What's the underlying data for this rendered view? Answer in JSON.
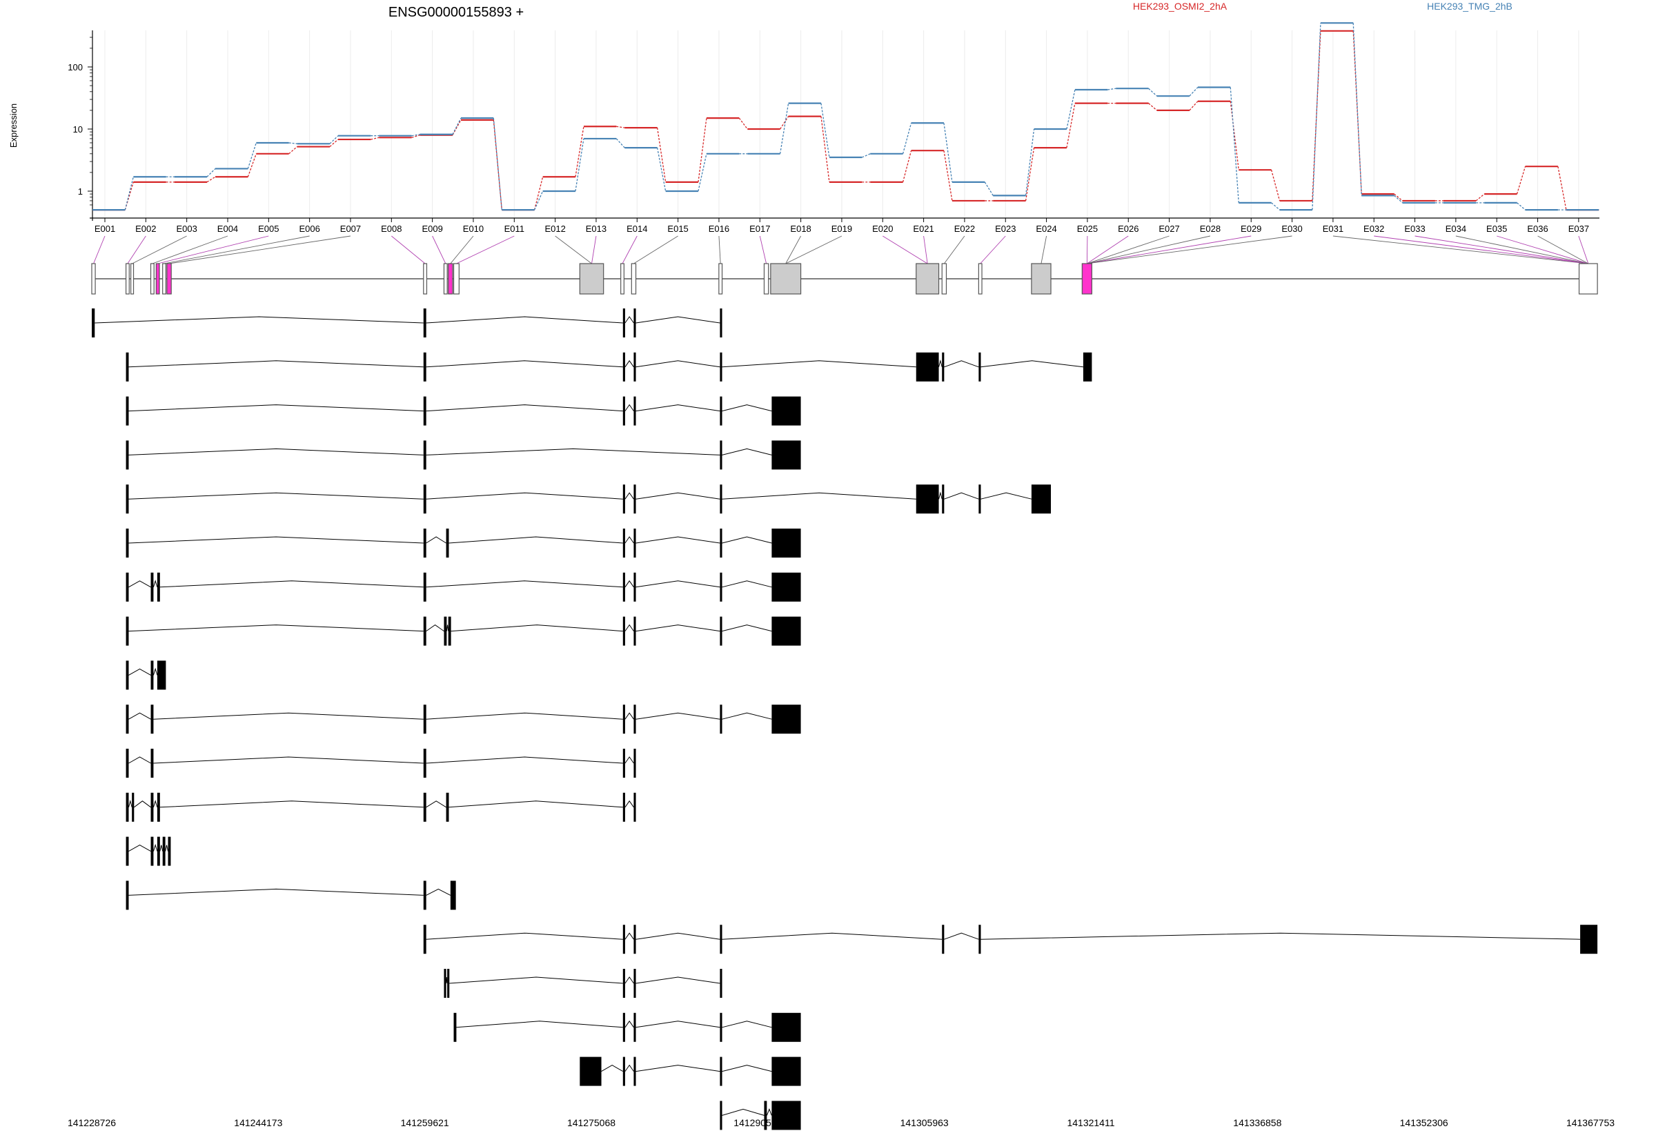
{
  "chart_data": {
    "type": "line",
    "title": "ENSG00000155893 +",
    "ylabel": "Expression",
    "yscale": "log",
    "ylim": [
      0.5,
      800
    ],
    "yticks": [
      "1",
      "10",
      "100"
    ],
    "grid": true,
    "legend_placement": "top",
    "categories": [
      "E001",
      "E002",
      "E003",
      "E004",
      "E005",
      "E006",
      "E007",
      "E008",
      "E009",
      "E010",
      "E011",
      "E012",
      "E013",
      "E014",
      "E015",
      "E016",
      "E017",
      "E018",
      "E019",
      "E020",
      "E021",
      "E022",
      "E023",
      "E024",
      "E025",
      "E026",
      "E027",
      "E028",
      "E029",
      "E030",
      "E031",
      "E032",
      "E033",
      "E034",
      "E035",
      "E036",
      "E037"
    ],
    "series": [
      {
        "name": "HEK293_OSMI2_2hA",
        "color": "#d62728",
        "values": [
          0.5,
          1.4,
          1.4,
          1.7,
          4,
          5.2,
          6.8,
          7.3,
          8,
          14,
          0.5,
          1.7,
          11,
          10.5,
          1.4,
          15,
          10,
          16,
          1.4,
          1.4,
          4.5,
          0.7,
          0.7,
          5,
          26,
          26,
          20,
          28,
          2.2,
          0.7,
          380,
          0.9,
          0.7,
          0.7,
          0.9,
          2.5,
          0.5
        ]
      },
      {
        "name": "HEK293_TMG_2hB",
        "color": "#4682b4",
        "values": [
          0.5,
          1.7,
          1.7,
          2.3,
          6,
          5.8,
          7.8,
          7.8,
          8.2,
          15,
          0.5,
          1,
          7,
          5,
          1,
          4,
          4,
          26,
          3.5,
          4,
          12.5,
          1.4,
          0.85,
          10,
          43,
          45,
          34,
          47,
          0.65,
          0.5,
          510,
          0.85,
          0.65,
          0.65,
          0.65,
          0.5,
          0.5
        ]
      }
    ],
    "genomic_axis": {
      "ticks": [
        "141228726",
        "141244173",
        "141259621",
        "141275068",
        "141290516",
        "141305963",
        "141321411",
        "141336858",
        "141352306",
        "141367753"
      ]
    }
  }
}
